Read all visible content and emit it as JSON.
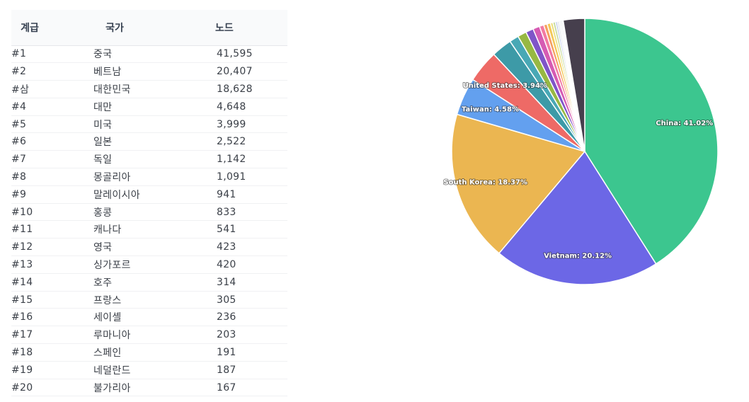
{
  "table": {
    "headers": {
      "rank": "계급",
      "country": "국가",
      "nodes": "노드"
    },
    "rows": [
      {
        "rank": "#1",
        "country": "중국",
        "nodes": "41,595"
      },
      {
        "rank": "#2",
        "country": "베트남",
        "nodes": "20,407"
      },
      {
        "rank": "#삼",
        "country": "대한민국",
        "nodes": "18,628"
      },
      {
        "rank": "#4",
        "country": "대만",
        "nodes": "4,648"
      },
      {
        "rank": "#5",
        "country": "미국",
        "nodes": "3,999"
      },
      {
        "rank": "#6",
        "country": "일본",
        "nodes": "2,522"
      },
      {
        "rank": "#7",
        "country": "독일",
        "nodes": "1,142"
      },
      {
        "rank": "#8",
        "country": "몽골리아",
        "nodes": "1,091"
      },
      {
        "rank": "#9",
        "country": "말레이시아",
        "nodes": "941"
      },
      {
        "rank": "#10",
        "country": "홍콩",
        "nodes": "833"
      },
      {
        "rank": "#11",
        "country": "캐나다",
        "nodes": "541"
      },
      {
        "rank": "#12",
        "country": "영국",
        "nodes": "423"
      },
      {
        "rank": "#13",
        "country": "싱가포르",
        "nodes": "420"
      },
      {
        "rank": "#14",
        "country": "호주",
        "nodes": "314"
      },
      {
        "rank": "#15",
        "country": "프랑스",
        "nodes": "305"
      },
      {
        "rank": "#16",
        "country": "세이셸",
        "nodes": "236"
      },
      {
        "rank": "#17",
        "country": "루마니아",
        "nodes": "203"
      },
      {
        "rank": "#18",
        "country": "스페인",
        "nodes": "191"
      },
      {
        "rank": "#19",
        "country": "네덜란드",
        "nodes": "187"
      },
      {
        "rank": "#20",
        "country": "불가리아",
        "nodes": "167"
      }
    ]
  },
  "chart_data": {
    "type": "pie",
    "title": "",
    "slices": [
      {
        "label": "China: 41.02%",
        "value": 41.02,
        "color": "#3cc68f"
      },
      {
        "label": "Vietnam: 20.12%",
        "value": 20.12,
        "color": "#6c67e6"
      },
      {
        "label": "South Korea: 18.37%",
        "value": 18.37,
        "color": "#ebb651"
      },
      {
        "label": "Taiwan: 4.58%",
        "value": 4.58,
        "color": "#63a0ef"
      },
      {
        "label": "United States: 3.94%",
        "value": 3.94,
        "color": "#ee6a66"
      },
      {
        "label": "",
        "value": 2.49,
        "color": "#3d9aa7"
      },
      {
        "label": "",
        "value": 1.13,
        "color": "#48a8b5"
      },
      {
        "label": "",
        "value": 1.08,
        "color": "#97b843"
      },
      {
        "label": "",
        "value": 0.93,
        "color": "#7f55c8"
      },
      {
        "label": "",
        "value": 0.82,
        "color": "#d65bb3"
      },
      {
        "label": "",
        "value": 0.53,
        "color": "#f27aa2"
      },
      {
        "label": "",
        "value": 0.42,
        "color": "#f5a060"
      },
      {
        "label": "",
        "value": 0.41,
        "color": "#f3c95a"
      },
      {
        "label": "",
        "value": 0.31,
        "color": "#ebe07a"
      },
      {
        "label": "",
        "value": 0.3,
        "color": "#c8dba0"
      },
      {
        "label": "",
        "value": 0.23,
        "color": "#b7c3e8"
      },
      {
        "label": "",
        "value": 0.2,
        "color": "#cfd6dc"
      },
      {
        "label": "",
        "value": 0.19,
        "color": "#e6e8ea"
      },
      {
        "label": "",
        "value": 0.18,
        "color": "#dfe3e6"
      },
      {
        "label": "",
        "value": 0.16,
        "color": "#f1f2f3"
      },
      {
        "label": "",
        "value": 2.6,
        "color": "#463f4d"
      }
    ]
  }
}
